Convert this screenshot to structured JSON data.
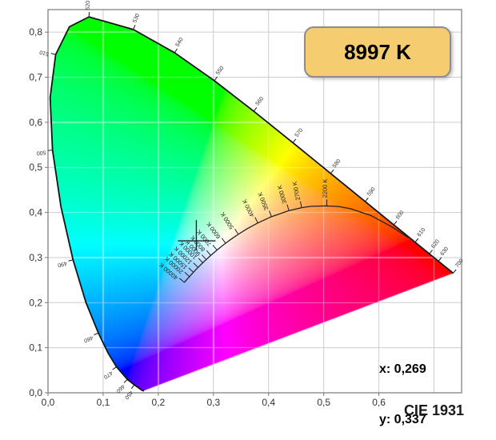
{
  "ui": {
    "badge": {
      "label": "8997 K",
      "fill": "#F5CD70",
      "border": "#8C8C8C"
    },
    "readout": {
      "x_line": "x: 0,269",
      "y_line": "y: 0,337"
    },
    "footer": {
      "label": "CIE 1931"
    },
    "colors": {
      "background": "#FFFFFF",
      "grid": "#CCCCCC",
      "axis_border": "#777777",
      "locus_outline": "#141414",
      "planckian_curve": "#222222",
      "marker": "#222222",
      "tick_label": "#333333",
      "axis_label": "#333333"
    }
  },
  "chart_data": {
    "type": "scatter",
    "title": "CIE 1931",
    "xlabel": "",
    "ylabel": "",
    "xlim": [
      0,
      0.75
    ],
    "ylim": [
      0,
      0.85
    ],
    "grid": true,
    "x_tick_labels": [
      "0,0",
      "0,1",
      "0,2",
      "0,3",
      "0,4",
      "0,5",
      "0,6"
    ],
    "y_tick_labels": [
      "0,0",
      "0,1",
      "0,2",
      "0,3",
      "0,4",
      "0,5",
      "0,6",
      "0,7",
      "0,8"
    ],
    "tick_step": 0.1,
    "marker": {
      "x": 0.269,
      "y": 0.337
    },
    "cct": "8997 K",
    "spectral_locus": [
      [
        380,
        0.1741,
        0.005
      ],
      [
        390,
        0.1738,
        0.0049
      ],
      [
        400,
        0.1733,
        0.0048
      ],
      [
        410,
        0.1726,
        0.0048
      ],
      [
        420,
        0.1714,
        0.0051
      ],
      [
        430,
        0.1689,
        0.0069
      ],
      [
        440,
        0.1644,
        0.0109
      ],
      [
        450,
        0.1566,
        0.0177
      ],
      [
        460,
        0.144,
        0.0297
      ],
      [
        470,
        0.1241,
        0.0578
      ],
      [
        475,
        0.1096,
        0.0868
      ],
      [
        480,
        0.0913,
        0.1327
      ],
      [
        485,
        0.0687,
        0.2007
      ],
      [
        490,
        0.0454,
        0.295
      ],
      [
        495,
        0.0235,
        0.4127
      ],
      [
        500,
        0.0082,
        0.5384
      ],
      [
        505,
        0.0039,
        0.6548
      ],
      [
        510,
        0.0139,
        0.7502
      ],
      [
        515,
        0.0389,
        0.812
      ],
      [
        520,
        0.0743,
        0.8338
      ],
      [
        530,
        0.1547,
        0.8059
      ],
      [
        540,
        0.2296,
        0.7543
      ],
      [
        550,
        0.3016,
        0.6923
      ],
      [
        560,
        0.3731,
        0.6245
      ],
      [
        570,
        0.4441,
        0.5547
      ],
      [
        580,
        0.5125,
        0.4866
      ],
      [
        590,
        0.5752,
        0.4242
      ],
      [
        600,
        0.627,
        0.3725
      ],
      [
        610,
        0.6658,
        0.334
      ],
      [
        620,
        0.6915,
        0.3083
      ],
      [
        630,
        0.7079,
        0.292
      ],
      [
        640,
        0.719,
        0.2809
      ],
      [
        650,
        0.726,
        0.274
      ],
      [
        660,
        0.73,
        0.27
      ],
      [
        680,
        0.7334,
        0.2666
      ],
      [
        700,
        0.7347,
        0.2653
      ]
    ],
    "wavelength_labels": [
      450,
      460,
      470,
      480,
      490,
      500,
      510,
      520,
      530,
      540,
      550,
      560,
      570,
      580,
      590,
      600,
      610,
      620,
      630,
      700
    ],
    "planckian_locus": [
      [
        40000,
        0.2472,
        0.2448
      ],
      [
        30000,
        0.2501,
        0.2489
      ],
      [
        20000,
        0.2565,
        0.2577
      ],
      [
        15000,
        0.2637,
        0.2673
      ],
      [
        12000,
        0.272,
        0.2781
      ],
      [
        10000,
        0.2807,
        0.2884
      ],
      [
        9000,
        0.2869,
        0.2956
      ],
      [
        8000,
        0.2952,
        0.3048
      ],
      [
        7000,
        0.3064,
        0.3166
      ],
      [
        6500,
        0.3135,
        0.3237
      ],
      [
        6000,
        0.3221,
        0.3318
      ],
      [
        5500,
        0.3324,
        0.341
      ],
      [
        5000,
        0.3451,
        0.3516
      ],
      [
        4500,
        0.3608,
        0.3636
      ],
      [
        4000,
        0.3805,
        0.3768
      ],
      [
        3500,
        0.4053,
        0.3907
      ],
      [
        3000,
        0.4369,
        0.4041
      ],
      [
        2700,
        0.4599,
        0.4106
      ],
      [
        2500,
        0.477,
        0.4137
      ],
      [
        2200,
        0.5056,
        0.4146
      ],
      [
        2000,
        0.5267,
        0.4133
      ],
      [
        1800,
        0.5493,
        0.4082
      ],
      [
        1500,
        0.5857,
        0.3931
      ],
      [
        1200,
        0.6251,
        0.367
      ],
      [
        1000,
        0.6528,
        0.3444
      ]
    ],
    "temperature_labels": [
      2200,
      2700,
      3000,
      3500,
      4000,
      5000,
      6000,
      7000,
      8000,
      9000,
      10000,
      12000,
      15000,
      20000,
      40000
    ],
    "temperature_label_suffix": " K"
  }
}
